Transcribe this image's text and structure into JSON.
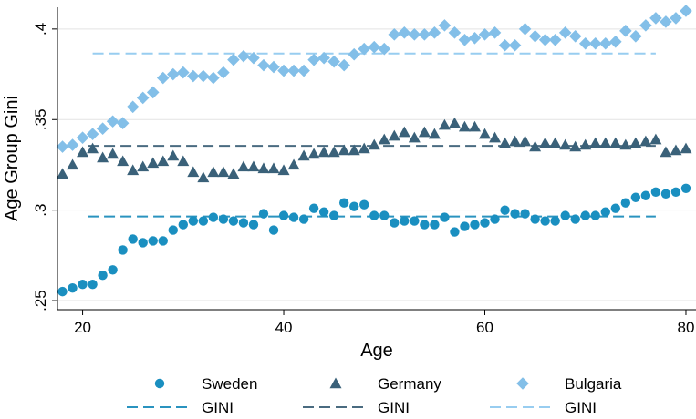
{
  "chart_data": {
    "type": "scatter",
    "xlabel": "Age",
    "ylabel": "Age Group Gini",
    "xlim": [
      17.5,
      81
    ],
    "ylim": [
      0.245,
      0.412
    ],
    "x_ticks": [
      20,
      40,
      60,
      80
    ],
    "x_tick_labels": [
      "20",
      "40",
      "60",
      "80"
    ],
    "y_ticks": [
      0.25,
      0.3,
      0.35,
      0.4
    ],
    "y_tick_labels": [
      ".25",
      ".3",
      ".35",
      ".4"
    ],
    "grid": "horizontal",
    "legend_position": "bottom",
    "x": [
      18,
      19,
      20,
      21,
      22,
      23,
      24,
      25,
      26,
      27,
      28,
      29,
      30,
      31,
      32,
      33,
      34,
      35,
      36,
      37,
      38,
      39,
      40,
      41,
      42,
      43,
      44,
      45,
      46,
      47,
      48,
      49,
      50,
      51,
      52,
      53,
      54,
      55,
      56,
      57,
      58,
      59,
      60,
      61,
      62,
      63,
      64,
      65,
      66,
      67,
      68,
      69,
      70,
      71,
      72,
      73,
      74,
      75,
      76,
      77,
      78,
      79,
      80
    ],
    "series": [
      {
        "name": "Sweden",
        "marker": "circle",
        "color": "#1a8fc0",
        "values": [
          0.255,
          0.257,
          0.259,
          0.259,
          0.264,
          0.267,
          0.278,
          0.284,
          0.282,
          0.283,
          0.283,
          0.289,
          0.292,
          0.294,
          0.294,
          0.296,
          0.295,
          0.294,
          0.293,
          0.292,
          0.298,
          0.289,
          0.297,
          0.296,
          0.295,
          0.301,
          0.299,
          0.297,
          0.304,
          0.302,
          0.303,
          0.297,
          0.297,
          0.293,
          0.294,
          0.294,
          0.292,
          0.292,
          0.296,
          0.288,
          0.291,
          0.292,
          0.293,
          0.295,
          0.3,
          0.298,
          0.298,
          0.295,
          0.294,
          0.294,
          0.297,
          0.295,
          0.297,
          0.297,
          0.299,
          0.301,
          0.304,
          0.307,
          0.308,
          0.31,
          0.309,
          0.31,
          0.312
        ]
      },
      {
        "name": "Germany",
        "marker": "triangle",
        "color": "#3a6179",
        "values": [
          0.32,
          0.325,
          0.332,
          0.334,
          0.329,
          0.331,
          0.327,
          0.322,
          0.324,
          0.326,
          0.327,
          0.33,
          0.327,
          0.321,
          0.318,
          0.321,
          0.321,
          0.32,
          0.324,
          0.324,
          0.323,
          0.323,
          0.322,
          0.325,
          0.33,
          0.331,
          0.332,
          0.332,
          0.333,
          0.333,
          0.334,
          0.336,
          0.339,
          0.341,
          0.343,
          0.34,
          0.343,
          0.342,
          0.347,
          0.348,
          0.346,
          0.346,
          0.342,
          0.34,
          0.337,
          0.338,
          0.338,
          0.335,
          0.337,
          0.337,
          0.336,
          0.335,
          0.336,
          0.337,
          0.337,
          0.337,
          0.336,
          0.337,
          0.338,
          0.339,
          0.332,
          0.333,
          0.334
        ]
      },
      {
        "name": "Bulgaria",
        "marker": "diamond",
        "color": "#83bfe8",
        "values": [
          0.335,
          0.336,
          0.34,
          0.342,
          0.345,
          0.349,
          0.348,
          0.357,
          0.362,
          0.365,
          0.373,
          0.375,
          0.376,
          0.374,
          0.374,
          0.373,
          0.376,
          0.383,
          0.385,
          0.384,
          0.38,
          0.379,
          0.377,
          0.377,
          0.377,
          0.383,
          0.384,
          0.382,
          0.38,
          0.386,
          0.389,
          0.39,
          0.389,
          0.397,
          0.398,
          0.397,
          0.397,
          0.398,
          0.402,
          0.398,
          0.394,
          0.395,
          0.397,
          0.398,
          0.391,
          0.391,
          0.4,
          0.396,
          0.394,
          0.394,
          0.398,
          0.396,
          0.392,
          0.392,
          0.392,
          0.393,
          0.399,
          0.396,
          0.402,
          0.406,
          0.404,
          0.406,
          0.41
        ]
      }
    ],
    "gini_lines": [
      {
        "name": "GINI",
        "value": 0.2965,
        "x_range": [
          20.5,
          77
        ],
        "color": "#2a93bf"
      },
      {
        "name": "GINI",
        "value": 0.3355,
        "x_range": [
          20.5,
          77
        ],
        "color": "#4a6b80"
      },
      {
        "name": "GINI",
        "value": 0.3865,
        "x_range": [
          21,
          77
        ],
        "color": "#98cdf0"
      }
    ]
  },
  "legend": {
    "items": [
      {
        "label": "Sweden",
        "marker": "circle",
        "color": "#1a8fc0"
      },
      {
        "label": "Germany",
        "marker": "triangle",
        "color": "#3a6179"
      },
      {
        "label": "Bulgaria",
        "marker": "diamond",
        "color": "#83bfe8"
      },
      {
        "label": "GINI",
        "marker": "dash",
        "color": "#2a93bf"
      },
      {
        "label": "GINI",
        "marker": "dash",
        "color": "#4a6b80"
      },
      {
        "label": "GINI",
        "marker": "dash",
        "color": "#98cdf0"
      }
    ]
  }
}
